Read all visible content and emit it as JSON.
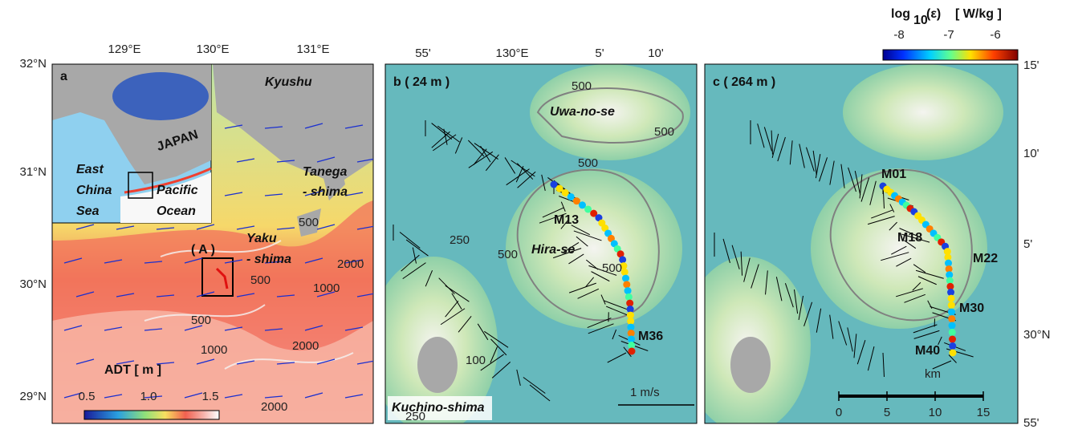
{
  "colorbar_epsilon": {
    "title_base": "log",
    "title_sub": "10",
    "title_var": "(ε)",
    "title_unit": "[ W/kg ]",
    "ticks": [
      "-8",
      "-7",
      "-6"
    ]
  },
  "panel_a": {
    "lon_labels": [
      "129°E",
      "130°E",
      "131°E"
    ],
    "lat_labels": [
      "32°N",
      "31°N",
      "30°N",
      "29°N"
    ],
    "inset": {
      "label": "a",
      "japan": "JAPAN",
      "east_china_sea": [
        "East",
        "China",
        "Sea"
      ],
      "pacific_ocean": [
        "Pacific",
        "Ocean"
      ]
    },
    "kyushu": "Kyushu",
    "tanegashima": [
      "Tanega",
      "- shima"
    ],
    "yakushima": [
      "Yaku",
      "- shima"
    ],
    "box_label": "( A )",
    "contour_labels": [
      "500",
      "1000",
      "2000",
      "500",
      "1000",
      "2000",
      "500",
      "2000"
    ],
    "adt_colorbar": {
      "title": "ADT  [ m ]",
      "ticks": [
        "0.5",
        "1.0",
        "1.5"
      ]
    }
  },
  "panel_b": {
    "lon_labels": [
      "55'",
      "130°E",
      "5'",
      "10'"
    ],
    "label": "b  ( 24 m )",
    "uwa_no_se": "Uwa-no-se",
    "hira_se": "Hira-se",
    "stations": [
      "M13",
      "M36"
    ],
    "kuchinoshima": "Kuchino-shima",
    "scale": "1 m/s",
    "contour_labels": [
      "500",
      "500",
      "500",
      "500",
      "250",
      "500",
      "250",
      "100"
    ]
  },
  "panel_c": {
    "label": "c  ( 264 m )",
    "stations": [
      "M01",
      "M18",
      "M22",
      "M30",
      "M40"
    ],
    "lat_labels": [
      "15'",
      "10'",
      "5'",
      "30°N",
      "55'"
    ],
    "scale_unit": "km",
    "scale_ticks": [
      "0",
      "5",
      "10",
      "15"
    ]
  }
}
